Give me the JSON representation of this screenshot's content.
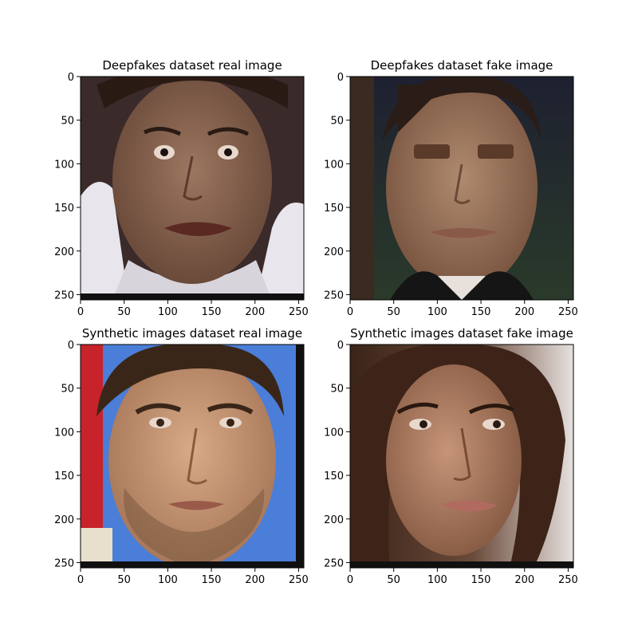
{
  "chart_data": [
    {
      "type": "image",
      "title": "Deepfakes dataset real image",
      "xlim": [
        0,
        256
      ],
      "ylim": [
        256,
        0
      ],
      "xticks": [
        0,
        50,
        100,
        150,
        200,
        250
      ],
      "yticks": [
        0,
        50,
        100,
        150,
        200,
        250
      ],
      "image": "face-photo-real-man",
      "colors": {
        "background": "#3a2a2a",
        "skin": "#8a6650",
        "hair": "#2a1a14",
        "clothing": "#e8e6ec"
      }
    },
    {
      "type": "image",
      "title": "Deepfakes dataset fake image",
      "xlim": [
        0,
        256
      ],
      "ylim": [
        256,
        0
      ],
      "xticks": [
        0,
        50,
        100,
        150,
        200,
        250
      ],
      "yticks": [
        0,
        50,
        100,
        150,
        200,
        250
      ],
      "image": "face-photo-fake-man",
      "colors": {
        "background": "#1c1e2e",
        "skin": "#a07a60",
        "hair": "#2a1c16",
        "clothing": "#151515"
      }
    },
    {
      "type": "image",
      "title": "Synthetic images dataset real image",
      "xlim": [
        0,
        256
      ],
      "ylim": [
        256,
        0
      ],
      "xticks": [
        0,
        50,
        100,
        150,
        200,
        250
      ],
      "yticks": [
        0,
        50,
        100,
        150,
        200,
        250
      ],
      "image": "face-photo-real-bearded-man",
      "colors": {
        "background": "#4a7ed8",
        "skin": "#c99a78",
        "hair": "#3a2618",
        "accent": "#c8232b"
      }
    },
    {
      "type": "image",
      "title": "Synthetic images dataset fake image",
      "xlim": [
        0,
        256
      ],
      "ylim": [
        256,
        0
      ],
      "xticks": [
        0,
        50,
        100,
        150,
        200,
        250
      ],
      "yticks": [
        0,
        50,
        100,
        150,
        200,
        250
      ],
      "image": "face-photo-fake-woman",
      "colors": {
        "background": "#d8d0cc",
        "skin": "#b48468",
        "hair": "#3e2418",
        "accent": "#d8dcdc"
      }
    }
  ]
}
